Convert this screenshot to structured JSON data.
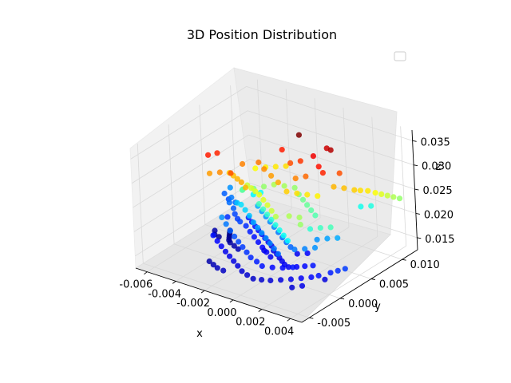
{
  "chart_data": {
    "type": "scatter",
    "projection": "3d",
    "title": "3D Position Distribution",
    "xlabel": "x",
    "ylabel": "y",
    "zlabel": "z",
    "xlim": [
      -0.0068,
      0.0048
    ],
    "ylim": [
      -0.0062,
      0.0125
    ],
    "zlim": [
      0.0125,
      0.0372
    ],
    "xticks": [
      "-0.006",
      "-0.004",
      "-0.002",
      "0.000",
      "0.002",
      "0.004"
    ],
    "xtick_values": [
      -0.006,
      -0.004,
      -0.002,
      0.0,
      0.002,
      0.004
    ],
    "yticks": [
      "-0.005",
      "0.000",
      "0.005",
      "0.010"
    ],
    "ytick_values": [
      -0.005,
      0.0,
      0.005,
      0.01
    ],
    "zticks": [
      "0.015",
      "0.020",
      "0.025",
      "0.030",
      "0.035"
    ],
    "ztick_values": [
      0.015,
      0.02,
      0.025,
      0.03,
      0.035
    ],
    "colormap": "jet",
    "color_by": "z",
    "grid": true,
    "legend": {
      "location": "upper right",
      "entries": []
    },
    "points": [
      {
        "x": -0.004,
        "y": 0.0015,
        "z": 0.0195
      },
      {
        "x": -0.0035,
        "y": 0.001,
        "z": 0.019
      },
      {
        "x": -0.003,
        "y": 0.0005,
        "z": 0.0185
      },
      {
        "x": -0.0025,
        "y": 0.0,
        "z": 0.0182
      },
      {
        "x": -0.002,
        "y": -0.0005,
        "z": 0.018
      },
      {
        "x": -0.0015,
        "y": -0.001,
        "z": 0.0178
      },
      {
        "x": -0.001,
        "y": -0.0015,
        "z": 0.0176
      },
      {
        "x": -0.0005,
        "y": -0.002,
        "z": 0.0174
      },
      {
        "x": 0.0,
        "y": -0.0022,
        "z": 0.0172
      },
      {
        "x": 0.0005,
        "y": -0.0025,
        "z": 0.017
      },
      {
        "x": 0.001,
        "y": -0.002,
        "z": 0.0168
      },
      {
        "x": 0.0015,
        "y": -0.0015,
        "z": 0.0168
      },
      {
        "x": 0.002,
        "y": -0.001,
        "z": 0.017
      },
      {
        "x": -0.003,
        "y": 0.003,
        "z": 0.0175
      },
      {
        "x": -0.0025,
        "y": 0.0025,
        "z": 0.0172
      },
      {
        "x": -0.002,
        "y": 0.002,
        "z": 0.017
      },
      {
        "x": -0.0015,
        "y": 0.0015,
        "z": 0.0168
      },
      {
        "x": -0.001,
        "y": 0.001,
        "z": 0.0166
      },
      {
        "x": -0.0005,
        "y": 0.0005,
        "z": 0.0165
      },
      {
        "x": 0.0,
        "y": 0.0,
        "z": 0.0164
      },
      {
        "x": -0.0045,
        "y": 0.0045,
        "z": 0.0185
      },
      {
        "x": -0.0042,
        "y": 0.004,
        "z": 0.018
      },
      {
        "x": -0.0038,
        "y": 0.0035,
        "z": 0.0178
      },
      {
        "x": -0.0034,
        "y": 0.003,
        "z": 0.018
      },
      {
        "x": -0.005,
        "y": 0.005,
        "z": 0.0188
      },
      {
        "x": -0.0048,
        "y": 0.0055,
        "z": 0.0186
      },
      {
        "x": -0.0036,
        "y": 0.0048,
        "z": 0.0172
      },
      {
        "x": -0.0032,
        "y": 0.0044,
        "z": 0.017
      },
      {
        "x": -0.0028,
        "y": 0.004,
        "z": 0.0168
      },
      {
        "x": -0.0024,
        "y": 0.0036,
        "z": 0.0167
      },
      {
        "x": -0.002,
        "y": 0.0032,
        "z": 0.0166
      },
      {
        "x": -0.0016,
        "y": 0.0028,
        "z": 0.0165
      },
      {
        "x": -0.0012,
        "y": 0.0024,
        "z": 0.0164
      },
      {
        "x": -0.0008,
        "y": 0.002,
        "z": 0.0163
      },
      {
        "x": 0.0,
        "y": 0.001,
        "z": 0.0162
      },
      {
        "x": 0.0004,
        "y": 0.0005,
        "z": 0.0162
      },
      {
        "x": 0.0008,
        "y": 0.0,
        "z": 0.0163
      },
      {
        "x": 0.0012,
        "y": -0.0005,
        "z": 0.0164
      },
      {
        "x": 0.0016,
        "y": -0.0008,
        "z": 0.0165
      },
      {
        "x": 0.002,
        "y": -0.0004,
        "z": 0.0166
      },
      {
        "x": 0.0024,
        "y": 0.0,
        "z": 0.0168
      },
      {
        "x": 0.0028,
        "y": 0.0004,
        "z": 0.017
      },
      {
        "x": -0.0004,
        "y": 0.0014,
        "z": 0.0162
      },
      {
        "x": -0.0008,
        "y": 0.0008,
        "z": 0.0163
      },
      {
        "x": 0.001,
        "y": 0.002,
        "z": 0.0164
      },
      {
        "x": 0.0015,
        "y": 0.0025,
        "z": 0.0166
      },
      {
        "x": -0.004,
        "y": 0.004,
        "z": 0.0205
      },
      {
        "x": -0.0035,
        "y": 0.0035,
        "z": 0.021
      },
      {
        "x": -0.003,
        "y": 0.003,
        "z": 0.0208
      },
      {
        "x": -0.0025,
        "y": 0.0025,
        "z": 0.0205
      },
      {
        "x": -0.002,
        "y": 0.002,
        "z": 0.02
      },
      {
        "x": -0.0015,
        "y": 0.0015,
        "z": 0.0198
      },
      {
        "x": -0.001,
        "y": 0.001,
        "z": 0.0196
      },
      {
        "x": -0.0005,
        "y": 0.0005,
        "z": 0.0194
      },
      {
        "x": 0.0,
        "y": 0.0,
        "z": 0.0192
      },
      {
        "x": 0.0005,
        "y": -0.0005,
        "z": 0.019
      },
      {
        "x": 0.001,
        "y": -0.001,
        "z": 0.0188
      },
      {
        "x": 0.0015,
        "y": 0.0005,
        "z": 0.019
      },
      {
        "x": 0.002,
        "y": 0.001,
        "z": 0.0192
      },
      {
        "x": 0.0025,
        "y": 0.0015,
        "z": 0.0195
      },
      {
        "x": -0.003,
        "y": 0.005,
        "z": 0.02
      },
      {
        "x": -0.0025,
        "y": 0.0045,
        "z": 0.0198
      },
      {
        "x": -0.002,
        "y": 0.004,
        "z": 0.0196
      },
      {
        "x": -0.0015,
        "y": 0.0035,
        "z": 0.0194
      },
      {
        "x": -0.001,
        "y": 0.003,
        "z": 0.0192
      },
      {
        "x": -0.0005,
        "y": 0.0025,
        "z": 0.019
      },
      {
        "x": 0.0,
        "y": 0.002,
        "z": 0.0188
      },
      {
        "x": 0.0005,
        "y": 0.0015,
        "z": 0.0187
      },
      {
        "x": 0.001,
        "y": 0.001,
        "z": 0.0186
      },
      {
        "x": 0.002,
        "y": 0.003,
        "z": 0.0195
      },
      {
        "x": 0.0025,
        "y": 0.0035,
        "z": 0.0198
      },
      {
        "x": 0.003,
        "y": 0.004,
        "z": 0.02
      },
      {
        "x": -0.0035,
        "y": 0.0055,
        "z": 0.0215
      },
      {
        "x": -0.0032,
        "y": 0.006,
        "z": 0.0218
      },
      {
        "x": -0.004,
        "y": 0.005,
        "z": 0.0225
      },
      {
        "x": -0.0038,
        "y": 0.0045,
        "z": 0.023
      },
      {
        "x": -0.0036,
        "y": 0.004,
        "z": 0.0235
      },
      {
        "x": -0.003,
        "y": 0.0045,
        "z": 0.024
      },
      {
        "x": -0.0025,
        "y": 0.005,
        "z": 0.0245
      },
      {
        "x": -0.002,
        "y": 0.0055,
        "z": 0.025
      },
      {
        "x": -0.0015,
        "y": 0.006,
        "z": 0.0248
      },
      {
        "x": -0.001,
        "y": 0.0065,
        "z": 0.0245
      },
      {
        "x": -0.0005,
        "y": 0.006,
        "z": 0.024
      },
      {
        "x": 0.0,
        "y": 0.0055,
        "z": 0.0238
      },
      {
        "x": 0.0005,
        "y": 0.005,
        "z": 0.0236
      },
      {
        "x": 0.001,
        "y": 0.0045,
        "z": 0.0234
      },
      {
        "x": 0.0015,
        "y": 0.004,
        "z": 0.0232
      },
      {
        "x": -0.002,
        "y": 0.003,
        "z": 0.023
      },
      {
        "x": -0.0015,
        "y": 0.0025,
        "z": 0.0228
      },
      {
        "x": -0.001,
        "y": 0.002,
        "z": 0.0226
      },
      {
        "x": -0.0005,
        "y": 0.0015,
        "z": 0.0224
      },
      {
        "x": 0.0,
        "y": 0.001,
        "z": 0.0222
      },
      {
        "x": 0.0005,
        "y": 0.0005,
        "z": 0.022
      },
      {
        "x": 0.001,
        "y": 0.0,
        "z": 0.0218
      },
      {
        "x": 0.0015,
        "y": -0.0005,
        "z": 0.0216
      },
      {
        "x": 0.002,
        "y": 0.002,
        "z": 0.0225
      },
      {
        "x": 0.0025,
        "y": 0.0025,
        "z": 0.0228
      },
      {
        "x": 0.003,
        "y": 0.003,
        "z": 0.023
      },
      {
        "x": -0.003,
        "y": 0.0035,
        "z": 0.0255
      },
      {
        "x": -0.0025,
        "y": 0.003,
        "z": 0.0258
      },
      {
        "x": -0.002,
        "y": 0.0025,
        "z": 0.026
      },
      {
        "x": -0.0015,
        "y": 0.002,
        "z": 0.0262
      },
      {
        "x": -0.001,
        "y": 0.0015,
        "z": 0.026
      },
      {
        "x": -0.0005,
        "y": 0.001,
        "z": 0.0258
      },
      {
        "x": 0.0,
        "y": 0.0005,
        "z": 0.0255
      },
      {
        "x": 0.0005,
        "y": 0.0,
        "z": 0.0252
      },
      {
        "x": 0.001,
        "y": 0.001,
        "z": 0.025
      },
      {
        "x": 0.0015,
        "y": 0.0015,
        "z": 0.0248
      },
      {
        "x": 0.002,
        "y": 0.0005,
        "z": 0.0246
      },
      {
        "x": -0.0035,
        "y": 0.006,
        "z": 0.0265
      },
      {
        "x": -0.003,
        "y": 0.0065,
        "z": 0.0268
      },
      {
        "x": -0.0025,
        "y": 0.007,
        "z": 0.027
      },
      {
        "x": -0.002,
        "y": 0.0075,
        "z": 0.0272
      },
      {
        "x": -0.004,
        "y": 0.003,
        "z": 0.0275
      },
      {
        "x": -0.0035,
        "y": 0.0025,
        "z": 0.0278
      },
      {
        "x": -0.003,
        "y": 0.002,
        "z": 0.028
      },
      {
        "x": -0.0025,
        "y": 0.0015,
        "z": 0.0282
      },
      {
        "x": -0.002,
        "y": 0.001,
        "z": 0.028
      },
      {
        "x": 0.0,
        "y": 0.003,
        "z": 0.0275
      },
      {
        "x": 0.0005,
        "y": 0.0035,
        "z": 0.0272
      },
      {
        "x": 0.001,
        "y": 0.004,
        "z": 0.027
      },
      {
        "x": 0.0015,
        "y": 0.0045,
        "z": 0.0268
      },
      {
        "x": -0.0045,
        "y": 0.001,
        "z": 0.0285
      },
      {
        "x": -0.004,
        "y": 0.0015,
        "z": 0.0288
      },
      {
        "x": -0.0035,
        "y": 0.004,
        "z": 0.029
      },
      {
        "x": -0.0028,
        "y": 0.005,
        "z": 0.0292
      },
      {
        "x": -0.0022,
        "y": 0.0045,
        "z": 0.0288
      },
      {
        "x": -0.0015,
        "y": 0.004,
        "z": 0.0285
      },
      {
        "x": -0.0008,
        "y": 0.0035,
        "z": 0.0282
      },
      {
        "x": 0.0,
        "y": 0.0045,
        "z": 0.029
      },
      {
        "x": 0.0005,
        "y": 0.005,
        "z": 0.0295
      },
      {
        "x": -0.001,
        "y": 0.006,
        "z": 0.03
      },
      {
        "x": -0.0005,
        "y": 0.0065,
        "z": 0.0305
      },
      {
        "x": -0.003,
        "y": 0.001,
        "z": 0.03
      },
      {
        "x": -0.005,
        "y": 0.002,
        "z": 0.031
      },
      {
        "x": -0.0048,
        "y": 0.003,
        "z": 0.0308
      },
      {
        "x": -0.002,
        "y": 0.007,
        "z": 0.031
      },
      {
        "x": 0.001,
        "y": 0.006,
        "z": 0.0312
      },
      {
        "x": 0.0015,
        "y": 0.0055,
        "z": 0.0308
      },
      {
        "x": 0.0002,
        "y": 0.007,
        "z": 0.0318
      },
      {
        "x": 0.002,
        "y": 0.007,
        "z": 0.03
      },
      {
        "x": -0.0012,
        "y": 0.008,
        "z": 0.034
      },
      {
        "x": 0.001,
        "y": 0.008,
        "z": 0.033
      },
      {
        "x": 0.0005,
        "y": 0.0085,
        "z": 0.0325
      },
      {
        "x": 0.002,
        "y": 0.006,
        "z": 0.028
      },
      {
        "x": 0.0025,
        "y": 0.0065,
        "z": 0.0278
      },
      {
        "x": 0.003,
        "y": 0.007,
        "z": 0.0275
      },
      {
        "x": 0.0032,
        "y": 0.0075,
        "z": 0.0272
      },
      {
        "x": 0.0035,
        "y": 0.008,
        "z": 0.027
      },
      {
        "x": 0.0038,
        "y": 0.0085,
        "z": 0.0265
      },
      {
        "x": 0.004,
        "y": 0.009,
        "z": 0.026
      },
      {
        "x": 0.0042,
        "y": 0.0095,
        "z": 0.0255
      },
      {
        "x": 0.0044,
        "y": 0.01,
        "z": 0.025
      },
      {
        "x": 0.0046,
        "y": 0.0105,
        "z": 0.0245
      },
      {
        "x": 0.003,
        "y": 0.0095,
        "z": 0.0222
      },
      {
        "x": 0.0025,
        "y": 0.009,
        "z": 0.022
      },
      {
        "x": -0.0045,
        "y": 0.0035,
        "z": 0.0175
      },
      {
        "x": -0.006,
        "y": 0.0065,
        "z": 0.0185
      },
      {
        "x": -0.0055,
        "y": 0.006,
        "z": 0.0182
      },
      {
        "x": -0.0052,
        "y": 0.0058,
        "z": 0.019
      },
      {
        "x": -0.0058,
        "y": 0.007,
        "z": 0.0195
      },
      {
        "x": -0.001,
        "y": -0.003,
        "z": 0.016
      },
      {
        "x": -0.0005,
        "y": -0.0035,
        "z": 0.0158
      },
      {
        "x": 0.0,
        "y": -0.0038,
        "z": 0.0157
      },
      {
        "x": 0.0005,
        "y": -0.004,
        "z": 0.0156
      },
      {
        "x": 0.001,
        "y": -0.0038,
        "z": 0.0157
      },
      {
        "x": 0.0015,
        "y": -0.0035,
        "z": 0.0158
      },
      {
        "x": 0.002,
        "y": -0.003,
        "z": 0.016
      },
      {
        "x": 0.0025,
        "y": -0.0025,
        "z": 0.0162
      },
      {
        "x": 0.003,
        "y": -0.002,
        "z": 0.0165
      },
      {
        "x": 0.0035,
        "y": -0.0015,
        "z": 0.0168
      },
      {
        "x": 0.0038,
        "y": -0.001,
        "z": 0.017
      },
      {
        "x": 0.004,
        "y": -0.0005,
        "z": 0.016
      },
      {
        "x": -0.0015,
        "y": -0.0025,
        "z": 0.0161
      },
      {
        "x": -0.002,
        "y": -0.002,
        "z": 0.0162
      },
      {
        "x": -0.0025,
        "y": -0.0015,
        "z": 0.0163
      },
      {
        "x": -0.003,
        "y": -0.001,
        "z": 0.0165
      },
      {
        "x": -0.0035,
        "y": -0.0005,
        "z": 0.0167
      },
      {
        "x": -0.004,
        "y": 0.0,
        "z": 0.017
      },
      {
        "x": 0.0042,
        "y": 0.0,
        "z": 0.0172
      },
      {
        "x": 0.0045,
        "y": 0.0005,
        "z": 0.0175
      },
      {
        "x": 0.0048,
        "y": 0.001,
        "z": 0.0178
      },
      {
        "x": -0.005,
        "y": 0.0025,
        "z": 0.015
      },
      {
        "x": -0.0048,
        "y": 0.002,
        "z": 0.0148
      },
      {
        "x": -0.0045,
        "y": 0.002,
        "z": 0.0146
      },
      {
        "x": -0.004,
        "y": 0.0025,
        "z": 0.0145
      },
      {
        "x": -0.0042,
        "y": 0.003,
        "z": 0.0144
      },
      {
        "x": -0.0038,
        "y": 0.002,
        "z": 0.0146
      },
      {
        "x": -0.0035,
        "y": 0.0015,
        "z": 0.0148
      },
      {
        "x": -0.003,
        "y": 0.001,
        "z": 0.015
      },
      {
        "x": -0.0025,
        "y": 0.0005,
        "z": 0.0152
      },
      {
        "x": -0.0044,
        "y": 0.0035,
        "z": 0.0143
      },
      {
        "x": -0.0046,
        "y": 0.004,
        "z": 0.0142
      },
      {
        "x": -0.003,
        "y": -0.003,
        "z": 0.015
      },
      {
        "x": -0.0025,
        "y": -0.0035,
        "z": 0.0152
      },
      {
        "x": -0.002,
        "y": -0.004,
        "z": 0.0154
      },
      {
        "x": -0.0015,
        "y": -0.0042,
        "z": 0.0155
      },
      {
        "x": 0.003,
        "y": -0.0035,
        "z": 0.0158
      },
      {
        "x": 0.0035,
        "y": -0.003,
        "z": 0.0162
      }
    ]
  }
}
